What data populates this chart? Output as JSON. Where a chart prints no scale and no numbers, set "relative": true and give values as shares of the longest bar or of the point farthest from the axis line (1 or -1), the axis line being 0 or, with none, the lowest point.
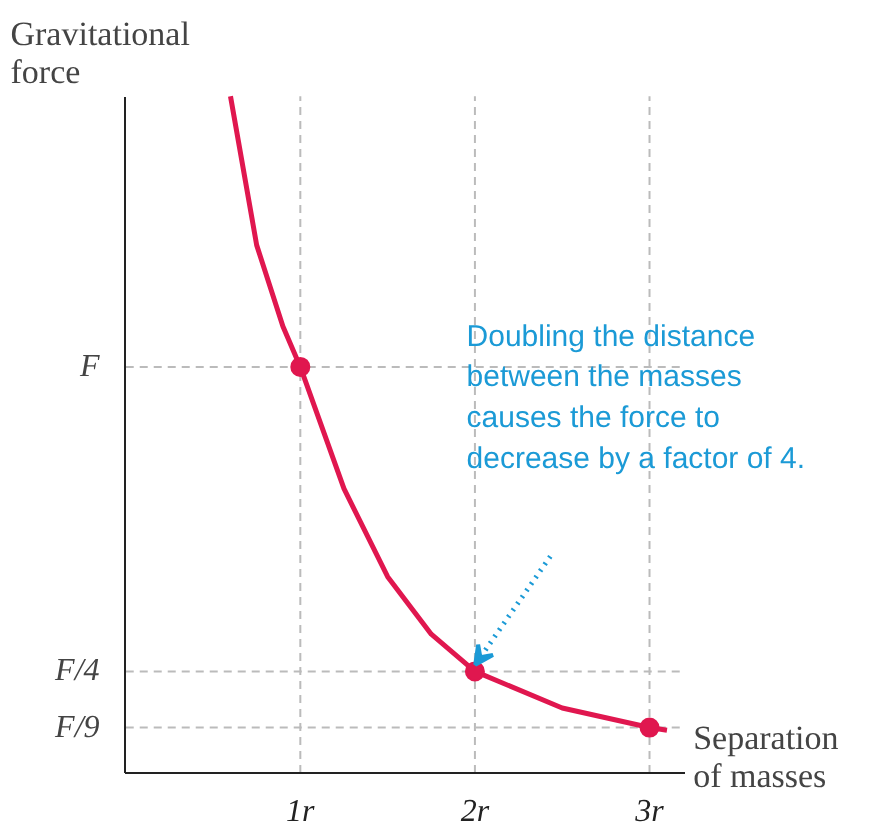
{
  "chart_data": {
    "type": "line",
    "relative": true,
    "xlabel": "Separation\nof masses",
    "ylabel": "Gravitational\nforce",
    "series": [
      {
        "color": "#e0174f",
        "x": [
          0.6,
          0.75,
          0.9,
          1,
          1.25,
          1.5,
          1.75,
          2,
          2.5,
          3,
          3.1
        ],
        "values": [
          1,
          0.78,
          0.66,
          0.6,
          0.42,
          0.29,
          0.205,
          0.15,
          0.096,
          0.067,
          0.063
        ]
      },
      {
        "type": "scatter",
        "color": "#e0174f",
        "marker": "circle",
        "x": [
          1,
          2,
          3
        ],
        "values": [
          0.6,
          0.15,
          0.067
        ]
      }
    ],
    "xlim": [
      0,
      3.2
    ],
    "xticks": [
      {
        "value": 1,
        "label": "1r"
      },
      {
        "value": 2,
        "label": "2r"
      },
      {
        "value": 3,
        "label": "3r"
      }
    ],
    "ref_lines": [
      {
        "axis": "y",
        "value": 0.6,
        "label": "F",
        "color": "#bbbbbb",
        "line_style": "dashed"
      },
      {
        "axis": "y",
        "value": 0.15,
        "label": "F/4",
        "color": "#bbbbbb",
        "line_style": "dashed"
      },
      {
        "axis": "y",
        "value": 0.067,
        "label": "F/9",
        "color": "#bbbbbb",
        "line_style": "dashed"
      },
      {
        "axis": "x",
        "value": 1,
        "color": "#bbbbbb",
        "line_style": "dashed"
      },
      {
        "axis": "x",
        "value": 2,
        "color": "#bbbbbb",
        "line_style": "dashed"
      },
      {
        "axis": "x",
        "value": 3,
        "color": "#bbbbbb",
        "line_style": "dashed"
      }
    ],
    "annotations": [
      "Doubling the distance\nbetween the masses\ncauses the force to\ndecrease by a factor of 4."
    ],
    "grid": false
  }
}
